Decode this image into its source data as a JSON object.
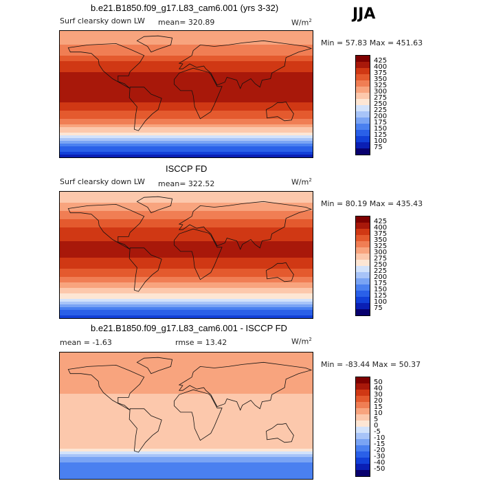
{
  "season": "JJA",
  "panels": [
    {
      "title": "b.e21.B1850.f09_g17.L83_cam6.001 (yrs 3-32)",
      "variable": "Surf clearsky down LW",
      "stat": "mean= 320.89",
      "units": "W/m",
      "units_sup": "2",
      "minmax": "Min =  57.83 Max = 451.63",
      "colorbar_ticks": [
        "425",
        "400",
        "375",
        "350",
        "325",
        "300",
        "275",
        "250",
        "225",
        "200",
        "175",
        "150",
        "125",
        "100",
        "75"
      ]
    },
    {
      "title": "ISCCP FD",
      "variable": "Surf clearsky down LW",
      "stat": "mean= 322.52",
      "units": "W/m",
      "units_sup": "2",
      "minmax": "Min =  80.19 Max = 435.43",
      "colorbar_ticks": [
        "425",
        "400",
        "375",
        "350",
        "325",
        "300",
        "275",
        "250",
        "225",
        "200",
        "175",
        "150",
        "125",
        "100",
        "75"
      ]
    },
    {
      "title": "b.e21.B1850.f09_g17.L83_cam6.001 - ISCCP FD",
      "stat": "mean =   -1.63",
      "stat2": "rmse =   13.42",
      "units": "W/m",
      "units_sup": "2",
      "minmax": "Min = -83.44 Max =  50.37",
      "colorbar_ticks": [
        "50",
        "40",
        "30",
        "20",
        "15",
        "10",
        "5",
        "0",
        "-5",
        "-10",
        "-15",
        "-20",
        "-30",
        "-40",
        "-50"
      ]
    }
  ],
  "colors": {
    "abs_scale": [
      "#08006e",
      "#0a1fb4",
      "#1240d8",
      "#2a60e8",
      "#4a80f0",
      "#7aa4f4",
      "#a8c4f8",
      "#d2e2fb",
      "#fde6d4",
      "#fcc8ac",
      "#f8a47e",
      "#f07e54",
      "#e45a2e",
      "#d03814",
      "#a8180a",
      "#7e0000"
    ],
    "diff_scale": [
      "#08006e",
      "#0a1fb4",
      "#1240d8",
      "#2a60e8",
      "#4a80f0",
      "#7aa4f4",
      "#a8c4f8",
      "#d2e2fb",
      "#fde6d4",
      "#fcc8ac",
      "#f8a47e",
      "#f07e54",
      "#e45a2e",
      "#d03814",
      "#a8180a",
      "#7e0000"
    ]
  },
  "chart_data": [
    {
      "type": "heatmap",
      "title": "b.e21.B1850.f09_g17.L83_cam6.001 (yrs 3-32)",
      "subtitle": "Surf clearsky down LW",
      "units": "W/m2",
      "mean": 320.89,
      "min": 57.83,
      "max": 451.63,
      "levels": [
        75,
        100,
        125,
        150,
        175,
        200,
        225,
        250,
        275,
        300,
        325,
        350,
        375,
        400,
        425
      ],
      "zonal_profile": {
        "lat": [
          90,
          75,
          60,
          45,
          30,
          15,
          0,
          -15,
          -30,
          -45,
          -60,
          -75,
          -90
        ],
        "values": [
          300,
          315,
          340,
          375,
          400,
          410,
          410,
          395,
          360,
          315,
          250,
          150,
          90
        ]
      }
    },
    {
      "type": "heatmap",
      "title": "ISCCP FD",
      "subtitle": "Surf clearsky down LW",
      "units": "W/m2",
      "mean": 322.52,
      "min": 80.19,
      "max": 435.43,
      "levels": [
        75,
        100,
        125,
        150,
        175,
        200,
        225,
        250,
        275,
        300,
        325,
        350,
        375,
        400,
        425
      ],
      "zonal_profile": {
        "lat": [
          90,
          75,
          60,
          45,
          30,
          15,
          0,
          -15,
          -30,
          -45,
          -60,
          -75,
          -90
        ],
        "values": [
          290,
          300,
          330,
          365,
          390,
          405,
          405,
          390,
          355,
          310,
          260,
          170,
          110
        ]
      }
    },
    {
      "type": "heatmap",
      "title": "b.e21.B1850.f09_g17.L83_cam6.001 - ISCCP FD",
      "units": "W/m2",
      "mean": -1.63,
      "rmse": 13.42,
      "min": -83.44,
      "max": 50.37,
      "levels": [
        -50,
        -40,
        -30,
        -20,
        -15,
        -10,
        -5,
        0,
        5,
        10,
        15,
        20,
        30,
        40,
        50
      ],
      "zonal_profile": {
        "lat": [
          90,
          75,
          60,
          45,
          30,
          15,
          0,
          -15,
          -30,
          -45,
          -60,
          -75,
          -90
        ],
        "values": [
          10,
          15,
          10,
          10,
          10,
          5,
          5,
          5,
          5,
          5,
          -10,
          -20,
          -20
        ]
      }
    }
  ]
}
